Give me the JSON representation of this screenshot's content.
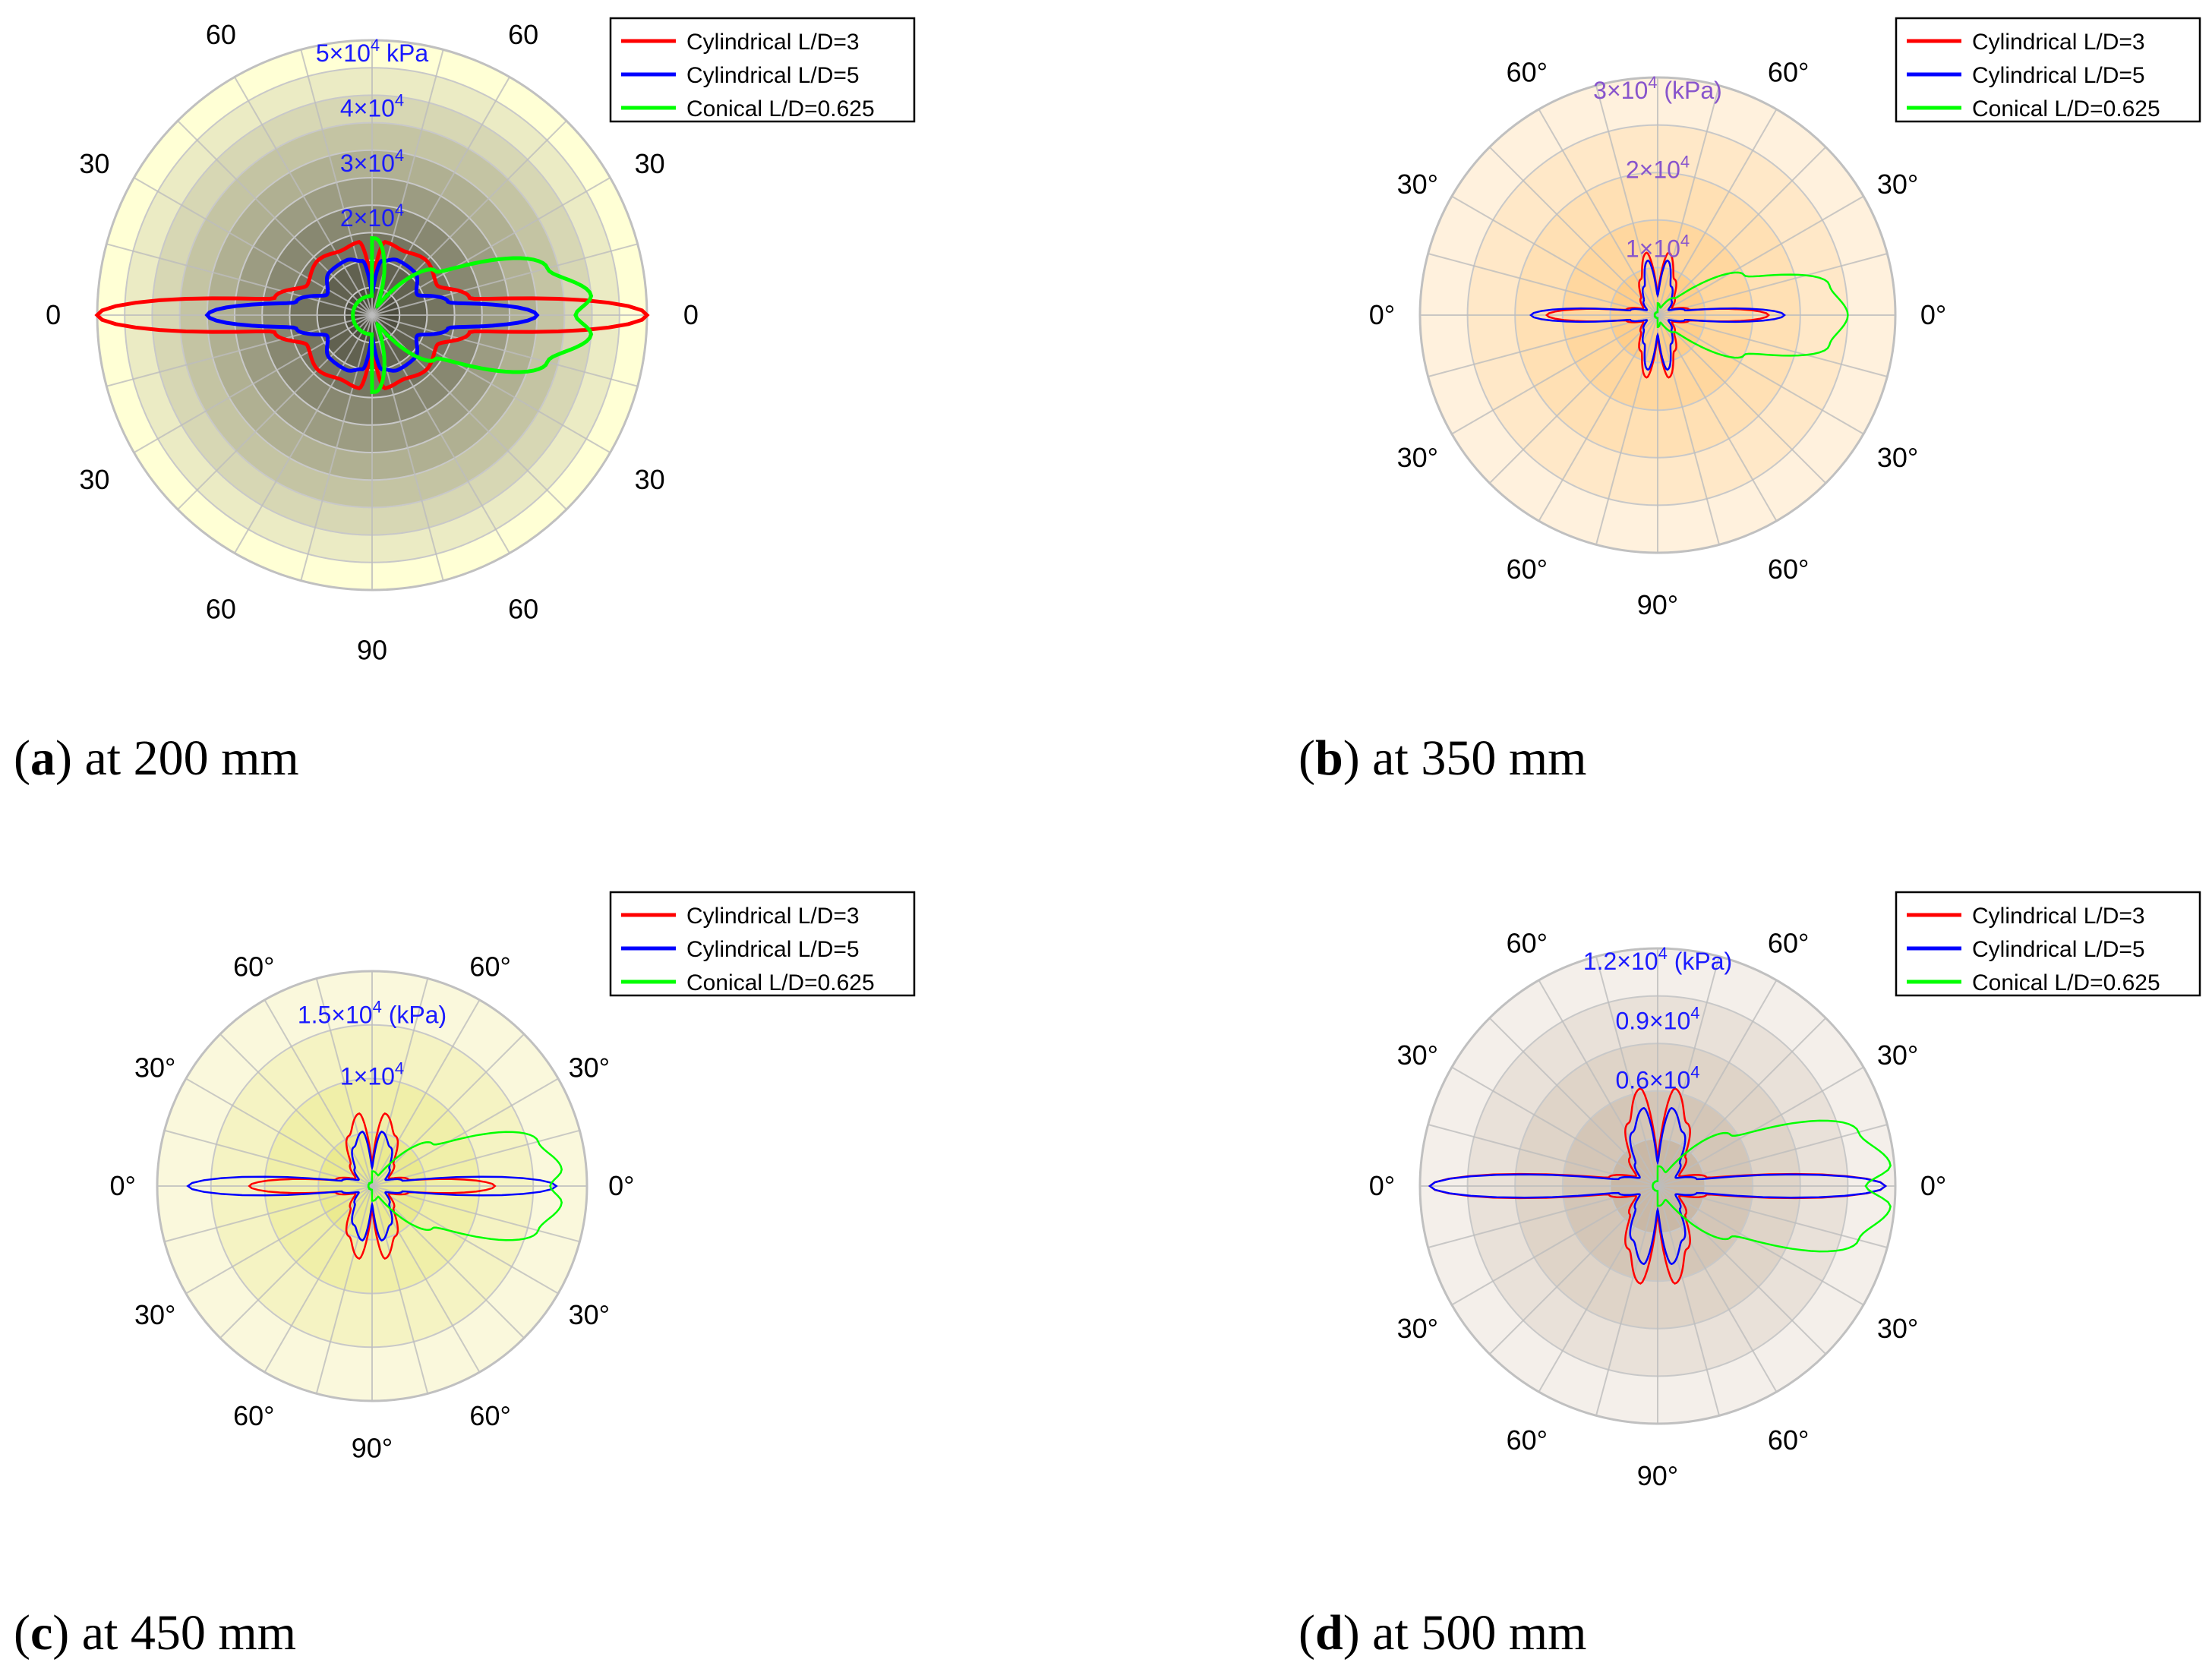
{
  "chart_data": [
    {
      "type": "polar-line",
      "caption_letter": "a",
      "caption_text": " at 200 mm",
      "angle_labels": {
        "top_left": "60",
        "top_right": "60",
        "upper_left": "30",
        "upper_right": "30",
        "left": "0",
        "right": "0",
        "lower_left": "30",
        "lower_right": "30",
        "bottom_left": "60",
        "bottom_right": "60",
        "bottom": "90"
      },
      "radial_ticks": [
        {
          "mant": "2",
          "exp": "4",
          "unit": ""
        },
        {
          "mant": "3",
          "exp": "4",
          "unit": ""
        },
        {
          "mant": "4",
          "exp": "4",
          "unit": ""
        },
        {
          "mant": "5",
          "exp": "4",
          "unit": " kPa"
        }
      ],
      "rmax": 50000,
      "theme": {
        "center": "#4d4d3f",
        "outer": "#ffffd5",
        "rings": 10,
        "tick_color": "#1a1aff"
      },
      "series": [
        {
          "name": "Cylindrical L/D=3",
          "color": "#ff0000",
          "values_deg_kPa": [
            [
              0,
              50000
            ],
            [
              10,
              18000
            ],
            [
              25,
              13000
            ],
            [
              45,
              14000
            ],
            [
              65,
              13000
            ],
            [
              80,
              13500
            ],
            [
              90,
              6000
            ]
          ]
        },
        {
          "name": "Cylindrical L/D=5",
          "color": "#0000ff",
          "values_deg_kPa": [
            [
              0,
              30000
            ],
            [
              10,
              14000
            ],
            [
              25,
              9000
            ],
            [
              45,
              11000
            ],
            [
              65,
              11000
            ],
            [
              80,
              10000
            ],
            [
              90,
              4000
            ]
          ]
        },
        {
          "name": "Conical L/D=0.625",
          "color": "#00ff00",
          "values_deg_kPa": [
            [
              0,
              37000
            ],
            [
              5,
              40000
            ],
            [
              15,
              33000
            ],
            [
              35,
              14000
            ],
            [
              60,
              2000
            ],
            [
              88,
              14000
            ]
          ]
        }
      ]
    },
    {
      "type": "polar-line",
      "caption_letter": "b",
      "caption_text": " at 350 mm",
      "angle_labels": {
        "top_left": "60°",
        "top_right": "60°",
        "upper_left": "30°",
        "upper_right": "30°",
        "left": "0°",
        "right": "0°",
        "lower_left": "30°",
        "lower_right": "30°",
        "bottom_left": "60°",
        "bottom_right": "60°",
        "bottom": "90°"
      },
      "radial_ticks": [
        {
          "mant": "1",
          "exp": "4",
          "unit": ""
        },
        {
          "mant": "2",
          "exp": "4",
          "unit": ""
        },
        {
          "mant": "3",
          "exp": "4",
          "unit": " (kPa)"
        }
      ],
      "rmax": 30000,
      "theme": {
        "center": "#ffce8a",
        "outer": "#fff1dd",
        "rings": 5,
        "tick_color": "#8855cc"
      },
      "series": [
        {
          "name": "Cylindrical L/D=3",
          "color": "#ff0000",
          "values_deg_kPa": [
            [
              0,
              14000
            ],
            [
              10,
              4000
            ],
            [
              25,
              2000
            ],
            [
              45,
              3000
            ],
            [
              65,
              5000
            ],
            [
              80,
              8000
            ],
            [
              90,
              3000
            ]
          ]
        },
        {
          "name": "Cylindrical L/D=5",
          "color": "#0000ff",
          "values_deg_kPa": [
            [
              0,
              16000
            ],
            [
              10,
              3500
            ],
            [
              25,
              1500
            ],
            [
              45,
              2500
            ],
            [
              65,
              4000
            ],
            [
              80,
              7000
            ],
            [
              90,
              2500
            ]
          ]
        },
        {
          "name": "Conical L/D=0.625",
          "color": "#00ff00",
          "values_deg_kPa": [
            [
              0,
              24000
            ],
            [
              10,
              22000
            ],
            [
              25,
              12000
            ],
            [
              45,
              3000
            ],
            [
              70,
              1000
            ],
            [
              88,
              1500
            ]
          ]
        }
      ]
    },
    {
      "type": "polar-line",
      "caption_letter": "c",
      "caption_text": " at 450 mm",
      "angle_labels": {
        "top_left": "60°",
        "top_right": "60°",
        "upper_left": "30°",
        "upper_right": "30°",
        "left": "0°",
        "right": "0°",
        "lower_left": "30°",
        "lower_right": "30°",
        "bottom_left": "60°",
        "bottom_right": "60°",
        "bottom": "90°"
      },
      "radial_ticks": [
        {
          "mant": "1",
          "exp": "4",
          "unit": ""
        },
        {
          "mant": "1.5",
          "exp": "4",
          "unit": " (kPa)"
        }
      ],
      "rmax": 17500,
      "theme": {
        "center": "#ebea90",
        "outer": "#faf8dc",
        "rings": 4,
        "tick_color": "#1a1aff"
      },
      "series": [
        {
          "name": "Cylindrical L/D=3",
          "color": "#ff0000",
          "values_deg_kPa": [
            [
              0,
              10000
            ],
            [
              10,
              3000
            ],
            [
              25,
              1500
            ],
            [
              45,
              2500
            ],
            [
              65,
              4500
            ],
            [
              80,
              6000
            ],
            [
              90,
              2000
            ]
          ]
        },
        {
          "name": "Cylindrical L/D=5",
          "color": "#0000ff",
          "values_deg_kPa": [
            [
              0,
              15000
            ],
            [
              10,
              2500
            ],
            [
              25,
              1200
            ],
            [
              45,
              2000
            ],
            [
              65,
              3500
            ],
            [
              80,
              4500
            ],
            [
              90,
              1500
            ]
          ]
        },
        {
          "name": "Conical L/D=0.625",
          "color": "#00ff00",
          "values_deg_kPa": [
            [
              0,
              14500
            ],
            [
              5,
              15500
            ],
            [
              15,
              14000
            ],
            [
              35,
              6000
            ],
            [
              60,
              1000
            ],
            [
              85,
              1200
            ]
          ]
        }
      ]
    },
    {
      "type": "polar-line",
      "caption_letter": "d",
      "caption_text": " at 500 mm",
      "angle_labels": {
        "top_left": "60°",
        "top_right": "60°",
        "upper_left": "30°",
        "upper_right": "30°",
        "left": "0°",
        "right": "0°",
        "lower_left": "30°",
        "lower_right": "30°",
        "bottom_left": "60°",
        "bottom_right": "60°",
        "bottom": "90°"
      },
      "radial_ticks": [
        {
          "mant": "0.6",
          "exp": "4",
          "unit": ""
        },
        {
          "mant": "0.9",
          "exp": "4",
          "unit": ""
        },
        {
          "mant": "1.2",
          "exp": "4",
          "unit": " (kPa)"
        }
      ],
      "rmax": 12000,
      "theme": {
        "center": "#c9b8a6",
        "outer": "#f4efea",
        "rings": 5,
        "tick_color": "#1a1aff"
      },
      "series": [
        {
          "name": "Cylindrical L/D=3",
          "color": "#ff0000",
          "values_deg_kPa": [
            [
              0,
              11500
            ],
            [
              10,
              2500
            ],
            [
              25,
              1200
            ],
            [
              45,
              2000
            ],
            [
              65,
              3500
            ],
            [
              80,
              5000
            ],
            [
              90,
              1500
            ]
          ]
        },
        {
          "name": "Cylindrical L/D=5",
          "color": "#0000ff",
          "values_deg_kPa": [
            [
              0,
              11500
            ],
            [
              10,
              2000
            ],
            [
              25,
              1000
            ],
            [
              45,
              1600
            ],
            [
              65,
              3000
            ],
            [
              80,
              4000
            ],
            [
              90,
              1200
            ]
          ]
        },
        {
          "name": "Conical L/D=0.625",
          "color": "#00ff00",
          "values_deg_kPa": [
            [
              0,
              10500
            ],
            [
              5,
              11800
            ],
            [
              15,
              10500
            ],
            [
              35,
              4500
            ],
            [
              60,
              800
            ],
            [
              85,
              1000
            ]
          ]
        }
      ]
    }
  ]
}
